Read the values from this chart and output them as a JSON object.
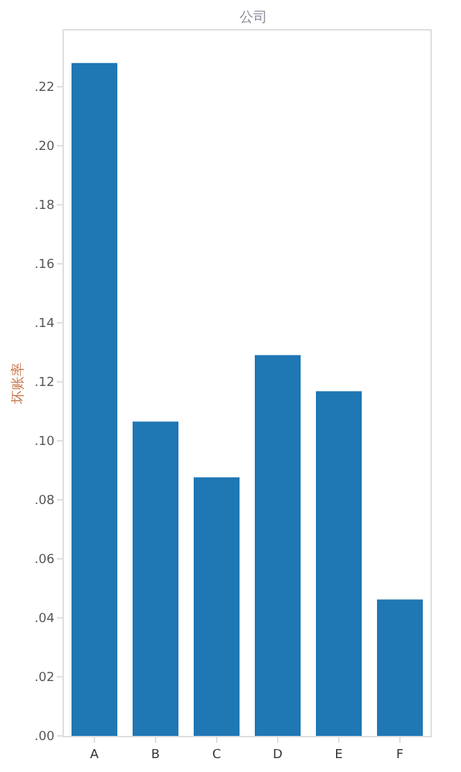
{
  "chart_data": {
    "type": "bar",
    "title": "公司",
    "ylabel": "坏账率",
    "categories": [
      "A",
      "B",
      "C",
      "D",
      "E",
      "F"
    ],
    "values": [
      0.228,
      0.1065,
      0.0876,
      0.129,
      0.1168,
      0.0462
    ],
    "color": "#1f77b4",
    "ylim": [
      0,
      0.239
    ],
    "yticks": [
      {
        "value": 0,
        "label": ".00"
      },
      {
        "value": 0.02,
        "label": ".02"
      },
      {
        "value": 0.04,
        "label": ".04"
      },
      {
        "value": 0.06,
        "label": ".06"
      },
      {
        "value": 0.08,
        "label": ".08"
      },
      {
        "value": 0.1,
        "label": ".10"
      },
      {
        "value": 0.12,
        "label": ".12"
      },
      {
        "value": 0.14,
        "label": ".14"
      },
      {
        "value": 0.16,
        "label": ".16"
      },
      {
        "value": 0.18,
        "label": ".18"
      },
      {
        "value": 0.2,
        "label": ".20"
      },
      {
        "value": 0.22,
        "label": ".22"
      }
    ],
    "grid": false
  }
}
